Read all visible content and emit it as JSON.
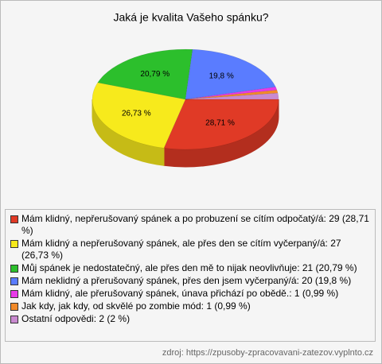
{
  "chart_data": {
    "type": "pie3d",
    "title": "Jaká je kvalita Vašeho spánku?",
    "categories": [
      "Mám klidný, nepřerušovaný spánek a po probuzení se cítím odpočatý/á: 29 (28,71 %)",
      "Mám klidný a nepřerušovaný spánek, ale přes den se cítím vyčerpaný/á: 27 (26,73 %)",
      "Můj spánek je nedostatečný, ale přes den mě to nijak neovlivňuje: 21 (20,79 %)",
      "Mám neklidný a přerušovaný spánek, přes den jsem vyčerpaný/á: 20 (19,8 %)",
      "Mám klidný, ale přerušovaný spánek, únava přichází po obědě.: 1 (0,99 %)",
      "Jak kdy, jak kdy, od skvělé po zombie mód: 1 (0,99 %)",
      "Ostatní odpovědi: 2 (2 %)"
    ],
    "values": [
      28.71,
      26.73,
      20.79,
      19.8,
      0.99,
      0.99,
      2
    ],
    "value_labels": [
      "28,71 %",
      "26,73 %",
      "20,79 %",
      "19,8 %",
      null,
      null,
      null
    ],
    "colors": [
      "#e03a26",
      "#f7ea1c",
      "#2cbf2c",
      "#5a7cff",
      "#e83ae8",
      "#f28a2a",
      "#c98ad0"
    ],
    "legend": "bottom",
    "source": "zdroj: https://zpusoby-zpracovavani-zatezov.vyplnto.cz"
  }
}
